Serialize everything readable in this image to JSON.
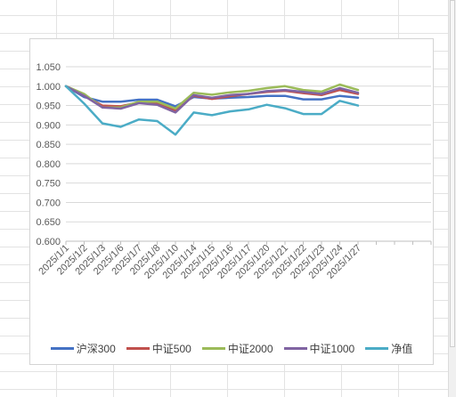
{
  "chart_data": {
    "type": "line",
    "categories": [
      "2025/1/1",
      "2025/1/2",
      "2025/1/3",
      "2025/1/6",
      "2025/1/7",
      "2025/1/8",
      "2025/1/10",
      "2025/1/14",
      "2025/1/15",
      "2025/1/16",
      "2025/1/17",
      "2025/1/20",
      "2025/1/21",
      "2025/1/22",
      "2025/1/23",
      "2025/1/24",
      "2025/1/27"
    ],
    "ylim": [
      0.6,
      1.05
    ],
    "yticks": [
      "0.600",
      "0.650",
      "0.700",
      "0.750",
      "0.800",
      "0.850",
      "0.900",
      "0.950",
      "1.000",
      "1.050"
    ],
    "grid": true,
    "legend_position": "bottom",
    "series": [
      {
        "name": "沪深300",
        "color": "#4472C4",
        "values": [
          1.0,
          0.972,
          0.96,
          0.96,
          0.965,
          0.965,
          0.948,
          0.972,
          0.968,
          0.97,
          0.972,
          0.975,
          0.975,
          0.966,
          0.966,
          0.975,
          0.97
        ]
      },
      {
        "name": "中证500",
        "color": "#C0504D",
        "values": [
          1.0,
          0.975,
          0.95,
          0.948,
          0.958,
          0.955,
          0.937,
          0.975,
          0.967,
          0.974,
          0.98,
          0.985,
          0.988,
          0.982,
          0.977,
          0.99,
          0.98
        ]
      },
      {
        "name": "中证2000",
        "color": "#9BBB59",
        "values": [
          1.0,
          0.98,
          0.945,
          0.945,
          0.96,
          0.96,
          0.942,
          0.983,
          0.978,
          0.984,
          0.988,
          0.995,
          1.0,
          0.99,
          0.986,
          1.004,
          0.99
        ]
      },
      {
        "name": "中证1000",
        "color": "#8064A2",
        "values": [
          1.0,
          0.975,
          0.945,
          0.942,
          0.956,
          0.952,
          0.932,
          0.977,
          0.97,
          0.977,
          0.98,
          0.987,
          0.99,
          0.985,
          0.98,
          0.995,
          0.983
        ]
      },
      {
        "name": "净值",
        "color": "#4BACC6",
        "values": [
          1.0,
          0.955,
          0.904,
          0.895,
          0.914,
          0.91,
          0.875,
          0.932,
          0.925,
          0.935,
          0.94,
          0.952,
          0.943,
          0.928,
          0.928,
          0.962,
          0.95
        ]
      }
    ]
  }
}
